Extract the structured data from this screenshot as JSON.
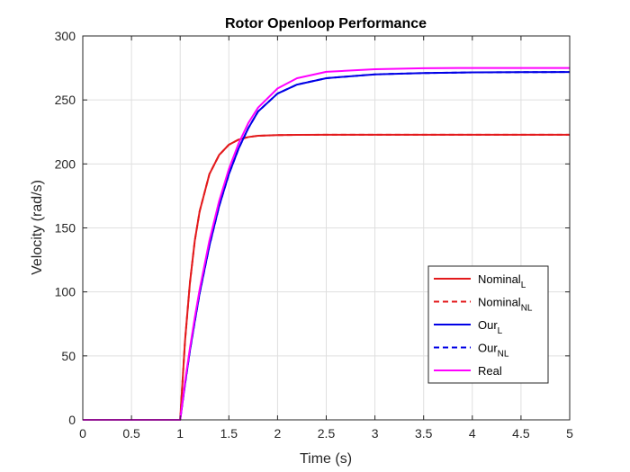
{
  "chart_data": {
    "type": "line",
    "title": "Rotor Openloop Performance",
    "xlabel": "Time (s)",
    "ylabel": "Velocity (rad/s)",
    "xlim": [
      0,
      5
    ],
    "ylim": [
      0,
      300
    ],
    "xticks": [
      "0",
      "0.5",
      "1",
      "1.5",
      "2",
      "2.5",
      "3",
      "3.5",
      "4",
      "4.5",
      "5"
    ],
    "yticks": [
      "0",
      "50",
      "100",
      "150",
      "200",
      "250",
      "300"
    ],
    "grid": true,
    "legend_position": "bottom-right",
    "x": [
      0,
      0.5,
      0.99,
      1.0,
      1.05,
      1.1,
      1.15,
      1.2,
      1.3,
      1.4,
      1.5,
      1.6,
      1.7,
      1.8,
      2.0,
      2.2,
      2.5,
      3.0,
      3.5,
      4.0,
      4.5,
      5.0
    ],
    "series": [
      {
        "name": "Nominal",
        "sub": "L",
        "style": "solid",
        "color": "#e31a1c",
        "values": [
          0,
          0,
          0,
          0,
          62,
          107,
          140,
          163,
          192,
          207,
          215,
          219,
          221,
          222,
          222.5,
          222.7,
          222.8,
          222.8,
          222.8,
          222.8,
          222.8,
          222.8
        ]
      },
      {
        "name": "Nominal",
        "sub": "NL",
        "style": "dashed",
        "color": "#e31a1c",
        "values": [
          0,
          0,
          0,
          0,
          62,
          107,
          140,
          163,
          192,
          207,
          215,
          219,
          221,
          222,
          222.5,
          222.7,
          222.8,
          222.8,
          222.8,
          222.8,
          222.8,
          222.8
        ]
      },
      {
        "name": "Our",
        "sub": "L",
        "style": "solid",
        "color": "#0000e6",
        "values": [
          0,
          0,
          0,
          0,
          28,
          54,
          77,
          99,
          136,
          167,
          192,
          212,
          228,
          241,
          255,
          262,
          267,
          270,
          271,
          271.5,
          271.7,
          271.8
        ]
      },
      {
        "name": "Our",
        "sub": "NL",
        "style": "dashed",
        "color": "#0000e6",
        "values": [
          0,
          0,
          0,
          0,
          28,
          54,
          77,
          99,
          136,
          167,
          192,
          212,
          228,
          241,
          255,
          262,
          267,
          270,
          271,
          271.5,
          271.7,
          271.8
        ]
      },
      {
        "name": "Real",
        "sub": "",
        "style": "solid",
        "color": "#ff00ff",
        "values": [
          0,
          0,
          0,
          0,
          30,
          56,
          80,
          102,
          140,
          171,
          196,
          216,
          232,
          244,
          259,
          267,
          272,
          274,
          274.8,
          275,
          275,
          275
        ]
      }
    ]
  }
}
